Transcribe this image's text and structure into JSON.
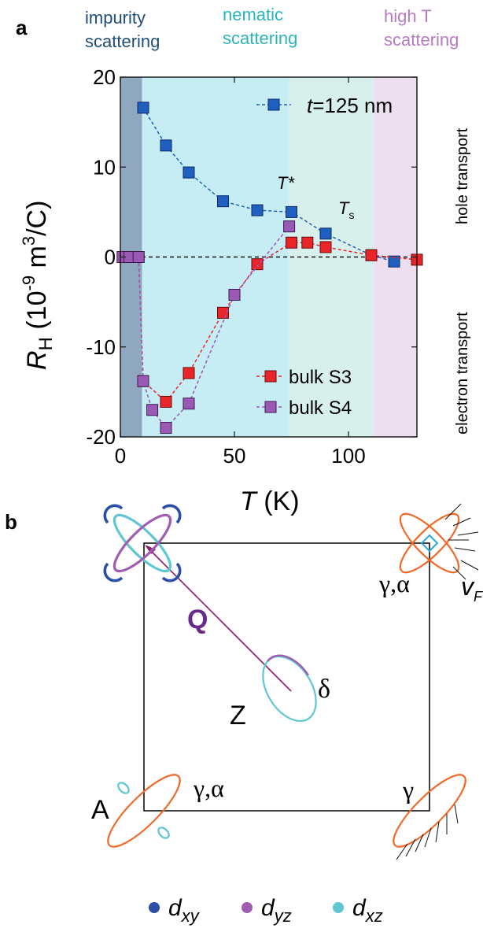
{
  "panel_labels": {
    "a": "a",
    "b": "b"
  },
  "regions": {
    "impurity": {
      "line1": "impurity",
      "line2": "scattering",
      "color": "#1f4e79"
    },
    "nematic": {
      "line1": "nematic",
      "line2": "scattering",
      "color": "#2bb5b8"
    },
    "hight": {
      "line1": "high T",
      "line2": "scattering",
      "color": "#b57cc0"
    }
  },
  "side_labels": {
    "hole": "hole transport",
    "electron": "electron transport"
  },
  "annotations": {
    "tstar": "T*",
    "ts_T": "T",
    "ts_sub": "s"
  },
  "legend": {
    "t_prefix": "t",
    "t_value": "=125 nm",
    "s3": "bulk S3",
    "s4": "bulk S4"
  },
  "axes": {
    "x_var": "T",
    "x_unit": " (K)",
    "y_var": "R",
    "y_sub": "H",
    "y_unit_open": "(10",
    "y_unit_exp1": "-9",
    "y_unit_mid": " m",
    "y_unit_exp2": "3",
    "y_unit_close": "/C)"
  },
  "chart_data": {
    "type": "scatter",
    "xlabel": "T (K)",
    "ylabel": "R_H (10^-9 m^3/C)",
    "xlim": [
      0,
      130
    ],
    "ylim": [
      -20,
      20
    ],
    "x_ticks": [
      0,
      50,
      100
    ],
    "y_ticks": [
      20,
      10,
      0,
      -10,
      -20
    ],
    "grid": false,
    "legend_position": "top-right / lower-right",
    "regions": [
      {
        "name": "impurity scattering",
        "x_range": [
          0,
          9.5
        ],
        "color": "#8fa8c0"
      },
      {
        "name": "nematic scattering",
        "x_range": [
          9.5,
          74
        ],
        "color": "#c6ecf4"
      },
      {
        "name": "",
        "x_range": [
          74,
          111
        ],
        "color": "#d8f0ec"
      },
      {
        "name": "high T scattering",
        "x_range": [
          111,
          130
        ],
        "color": "#eddff0"
      }
    ],
    "series": [
      {
        "name": "t=125 nm",
        "color": "#1f5fbf",
        "x": [
          10,
          20,
          30,
          45,
          60,
          75,
          90,
          110,
          120
        ],
        "y": [
          16.6,
          12.4,
          9.4,
          6.2,
          5.2,
          5.0,
          2.6,
          0.2,
          -0.5
        ]
      },
      {
        "name": "bulk S3",
        "color": "#e8262a",
        "x": [
          1,
          4,
          8,
          10,
          20,
          30,
          45,
          60,
          75,
          82,
          90,
          110,
          130
        ],
        "y": [
          0,
          0,
          0,
          -13.8,
          -16.1,
          -12.9,
          -6.2,
          -0.8,
          1.6,
          1.6,
          1.1,
          0.2,
          -0.3
        ]
      },
      {
        "name": "bulk S4",
        "color": "#9b59b6",
        "x": [
          1,
          4,
          8,
          10,
          14,
          20,
          30,
          50,
          74
        ],
        "y": [
          0,
          0,
          0,
          -13.8,
          -17.0,
          -19.0,
          -16.3,
          -4.2,
          3.4
        ]
      }
    ]
  },
  "diagram": {
    "Q": "Q",
    "delta": "δ",
    "Z": "Z",
    "A": "A",
    "ga_top": "γ,α",
    "ga_bottom": "γ,α",
    "gamma": "γ",
    "vF": "v",
    "vF_sub": "F",
    "orbitals": [
      {
        "label": "d",
        "sub": "xy",
        "color": "#2b4fa8"
      },
      {
        "label": "d",
        "sub": "yz",
        "color": "#a05cb0"
      },
      {
        "label": "d",
        "sub": "xz",
        "color": "#5fc6d2"
      }
    ],
    "orange": "#f06a2a"
  }
}
